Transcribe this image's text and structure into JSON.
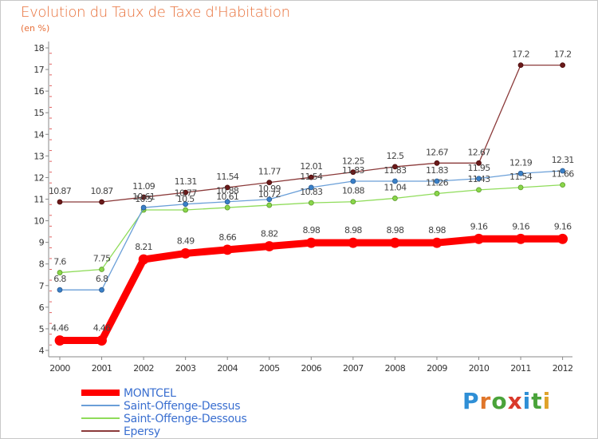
{
  "chart_data": {
    "type": "line",
    "title": "Evolution du Taux de Taxe d'Habitation",
    "subtitle": "(en %)",
    "xlabel": "",
    "ylabel": "",
    "ylim": [
      4,
      18
    ],
    "yticks": [
      4,
      5,
      6,
      7,
      8,
      9,
      10,
      11,
      12,
      13,
      14,
      15,
      16,
      17,
      18
    ],
    "categories": [
      "2000",
      "2001",
      "2002",
      "2003",
      "2004",
      "2005",
      "2006",
      "2007",
      "2008",
      "2009",
      "2010",
      "2011",
      "2012"
    ],
    "series": [
      {
        "name": "MONTCEL",
        "color": "#ff0000",
        "values": [
          4.46,
          4.46,
          8.21,
          8.49,
          8.66,
          8.82,
          8.98,
          8.98,
          8.98,
          8.98,
          9.16,
          9.16,
          9.16
        ],
        "labels": [
          "4.46",
          "4.46",
          "8.21",
          "8.49",
          "8.66",
          "8.82",
          "8.98",
          "8.98",
          "8.98",
          "8.98",
          "9.16",
          "9.16",
          "9.16"
        ]
      },
      {
        "name": "Saint-Offenge-Dessus",
        "color": "#6a9fd8",
        "values": [
          6.8,
          6.8,
          10.61,
          10.77,
          10.88,
          10.99,
          11.54,
          11.83,
          11.83,
          11.83,
          11.95,
          12.19,
          12.31
        ],
        "labels": [
          "6.8",
          "6.8",
          "10.61",
          "10.77",
          "10.88",
          "10.99",
          "11.54",
          "11.83",
          "11.83",
          "11.83",
          "11.95",
          "12.19",
          "12.31"
        ]
      },
      {
        "name": "Saint-Offenge-Dessous",
        "color": "#8fdc5a",
        "values": [
          7.6,
          7.75,
          10.5,
          10.5,
          10.61,
          10.72,
          10.83,
          10.88,
          11.04,
          11.26,
          11.43,
          11.54,
          11.66
        ],
        "labels": [
          "7.6",
          "7.75",
          "10.5",
          "10.5",
          "10.61",
          "10.72",
          "10.83",
          "10.88",
          "11.04",
          "11.26",
          "11.43",
          "11.54",
          "11.66"
        ]
      },
      {
        "name": "Epersy",
        "color": "#8b3a3a",
        "values": [
          10.87,
          10.87,
          11.09,
          11.31,
          11.54,
          11.77,
          12.01,
          12.25,
          12.5,
          12.67,
          12.67,
          17.2,
          17.2
        ],
        "labels": [
          "10.87",
          "10.87",
          "11.09",
          "11.31",
          "11.54",
          "11.77",
          "12.01",
          "12.25",
          "12.5",
          "12.67",
          "12.67",
          "17.2",
          "17.2"
        ]
      }
    ],
    "legend": [
      "MONTCEL",
      "Saint-Offenge-Dessus",
      "Saint-Offenge-Dessous",
      "Epersy"
    ],
    "legend_placement": "bottom-left"
  },
  "branding": {
    "letters": [
      "P",
      "r",
      "o",
      "x",
      "i",
      "t",
      "i"
    ]
  }
}
